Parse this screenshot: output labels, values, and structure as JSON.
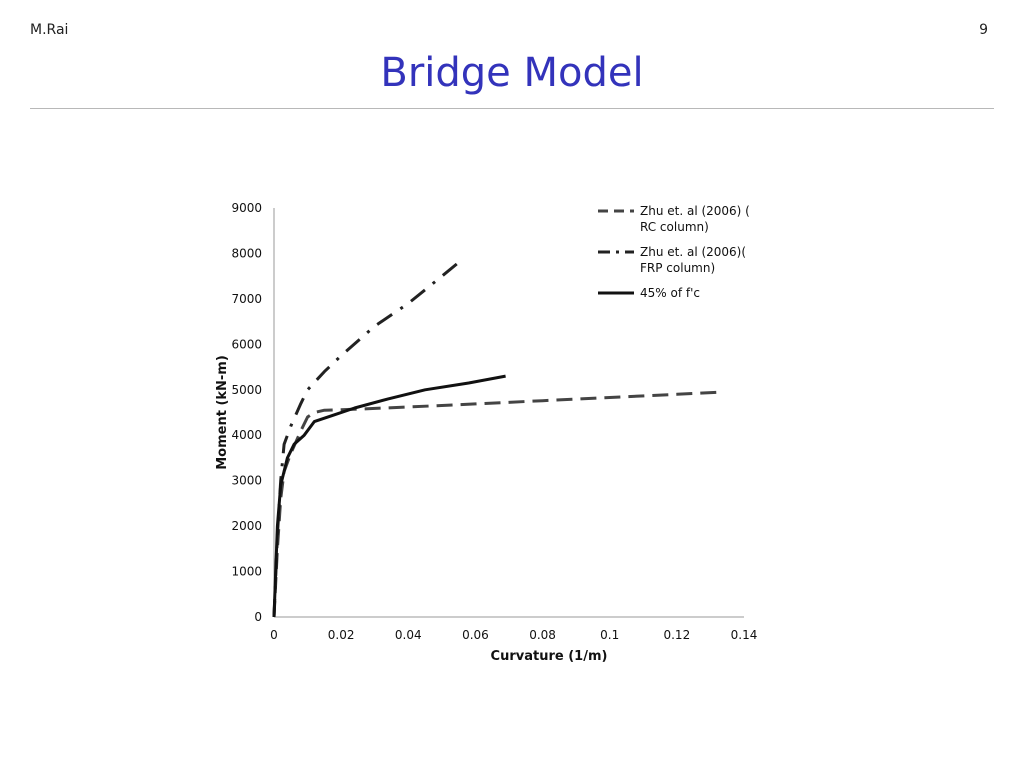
{
  "header": {
    "author": "M.Rai",
    "page_number": "9",
    "title": "Bridge Model"
  },
  "chart_data": {
    "type": "line",
    "xlabel": "Curvature (1/m)",
    "ylabel": "Moment (kN-m)",
    "xlim": [
      0,
      0.14
    ],
    "ylim": [
      0,
      9000
    ],
    "xticks": [
      "0",
      "0.02",
      "0.04",
      "0.06",
      "0.08",
      "0.1",
      "0.12",
      "0.14"
    ],
    "yticks": [
      "0",
      "1000",
      "2000",
      "3000",
      "4000",
      "5000",
      "6000",
      "7000",
      "8000",
      "9000"
    ],
    "grid": false,
    "legend_position": "top-right",
    "series": [
      {
        "name": "Zhu et. al (2006) ( RC column)",
        "style": "dashed",
        "color": "#444444",
        "x": [
          0,
          0.001,
          0.002,
          0.003,
          0.005,
          0.008,
          0.01,
          0.012,
          0.015,
          0.02,
          0.04,
          0.06,
          0.08,
          0.1,
          0.12,
          0.134
        ],
        "y": [
          0,
          1500,
          2600,
          3200,
          3600,
          4100,
          4400,
          4500,
          4550,
          4560,
          4620,
          4690,
          4760,
          4830,
          4900,
          4950
        ]
      },
      {
        "name": "Zhu et. al (2006)( FRP column)",
        "style": "dash-dot",
        "color": "#222222",
        "x": [
          0,
          0.001,
          0.002,
          0.003,
          0.005,
          0.008,
          0.01,
          0.015,
          0.02,
          0.03,
          0.04,
          0.05,
          0.055
        ],
        "y": [
          0,
          1800,
          3000,
          3800,
          4200,
          4700,
          5000,
          5400,
          5750,
          6400,
          6900,
          7500,
          7800
        ]
      },
      {
        "name": "45% of f'c",
        "style": "solid",
        "color": "#111111",
        "x": [
          0,
          0.001,
          0.002,
          0.004,
          0.006,
          0.009,
          0.012,
          0.018,
          0.024,
          0.034,
          0.045,
          0.058,
          0.069
        ],
        "y": [
          0,
          2000,
          2900,
          3500,
          3800,
          4000,
          4300,
          4450,
          4600,
          4800,
          5000,
          5150,
          5300
        ]
      }
    ]
  }
}
